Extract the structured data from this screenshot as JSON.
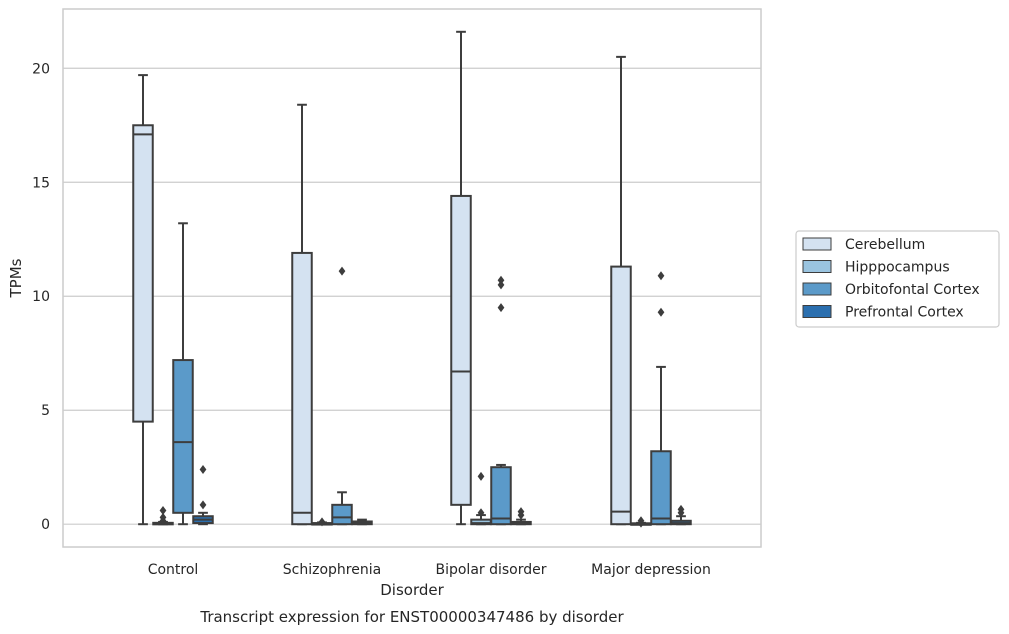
{
  "chart_data": {
    "type": "boxplot",
    "title": "",
    "xlabel": "Disorder",
    "ylabel": "TPMs",
    "caption": "Transcript expression for ENST00000347486 by disorder",
    "ylim": [
      -1,
      22.6
    ],
    "yticks": [
      0,
      5,
      10,
      15,
      20
    ],
    "grid": "horizontal",
    "legend_position": "right",
    "categories": [
      "Control",
      "Schizophrenia",
      "Bipolar disorder",
      "Major depression"
    ],
    "series": [
      {
        "name": "Cerebellum",
        "color": "#d4e2f1",
        "boxes": [
          {
            "whislo": 0,
            "q1": 4.5,
            "med": 17.1,
            "q3": 17.5,
            "whishi": 19.7,
            "fliers": []
          },
          {
            "whislo": 0,
            "q1": 0,
            "med": 0.5,
            "q3": 11.9,
            "whishi": 18.4,
            "fliers": []
          },
          {
            "whislo": 0,
            "q1": 0.85,
            "med": 6.7,
            "q3": 14.4,
            "whishi": 21.6,
            "fliers": []
          },
          {
            "whislo": 0,
            "q1": 0,
            "med": 0.55,
            "q3": 11.3,
            "whishi": 20.5,
            "fliers": []
          }
        ]
      },
      {
        "name": "Hipppocampus",
        "color": "#9ac4e0",
        "boxes": [
          {
            "whislo": 0,
            "q1": 0,
            "med": 0.03,
            "q3": 0.06,
            "whishi": 0.1,
            "fliers": [
              0.6,
              0.3,
              0.15
            ]
          },
          {
            "whislo": 0,
            "q1": 0,
            "med": 0.02,
            "q3": 0.05,
            "whishi": 0.08,
            "fliers": [
              0.1
            ]
          },
          {
            "whislo": 0,
            "q1": 0,
            "med": 0.05,
            "q3": 0.2,
            "whishi": 0.4,
            "fliers": [
              2.1,
              0.5
            ]
          },
          {
            "whislo": 0,
            "q1": 0,
            "med": 0.02,
            "q3": 0.04,
            "whishi": 0.06,
            "fliers": [
              0.15,
              0.05
            ]
          }
        ]
      },
      {
        "name": "Orbitofontal Cortex",
        "color": "#5b9ac9",
        "boxes": [
          {
            "whislo": 0,
            "q1": 0.5,
            "med": 3.6,
            "q3": 7.2,
            "whishi": 13.2,
            "fliers": []
          },
          {
            "whislo": 0,
            "q1": 0,
            "med": 0.3,
            "q3": 0.85,
            "whishi": 1.4,
            "fliers": [
              11.1
            ]
          },
          {
            "whislo": 0,
            "q1": 0,
            "med": 0.25,
            "q3": 2.5,
            "whishi": 2.6,
            "fliers": [
              10.7,
              10.5,
              9.5
            ]
          },
          {
            "whislo": 0,
            "q1": 0,
            "med": 0.25,
            "q3": 3.2,
            "whishi": 6.9,
            "fliers": [
              10.9,
              9.3
            ]
          }
        ]
      },
      {
        "name": "Prefrontal Cortex",
        "color": "#2b6faf",
        "boxes": [
          {
            "whislo": 0,
            "q1": 0.05,
            "med": 0.2,
            "q3": 0.35,
            "whishi": 0.5,
            "fliers": [
              2.4,
              0.85
            ]
          },
          {
            "whislo": 0,
            "q1": 0,
            "med": 0.05,
            "q3": 0.12,
            "whishi": 0.2,
            "fliers": []
          },
          {
            "whislo": 0,
            "q1": 0,
            "med": 0.05,
            "q3": 0.1,
            "whishi": 0.2,
            "fliers": [
              0.55,
              0.4
            ]
          },
          {
            "whislo": 0,
            "q1": 0,
            "med": 0.05,
            "q3": 0.15,
            "whishi": 0.35,
            "fliers": [
              0.65,
              0.5
            ]
          }
        ]
      }
    ]
  }
}
